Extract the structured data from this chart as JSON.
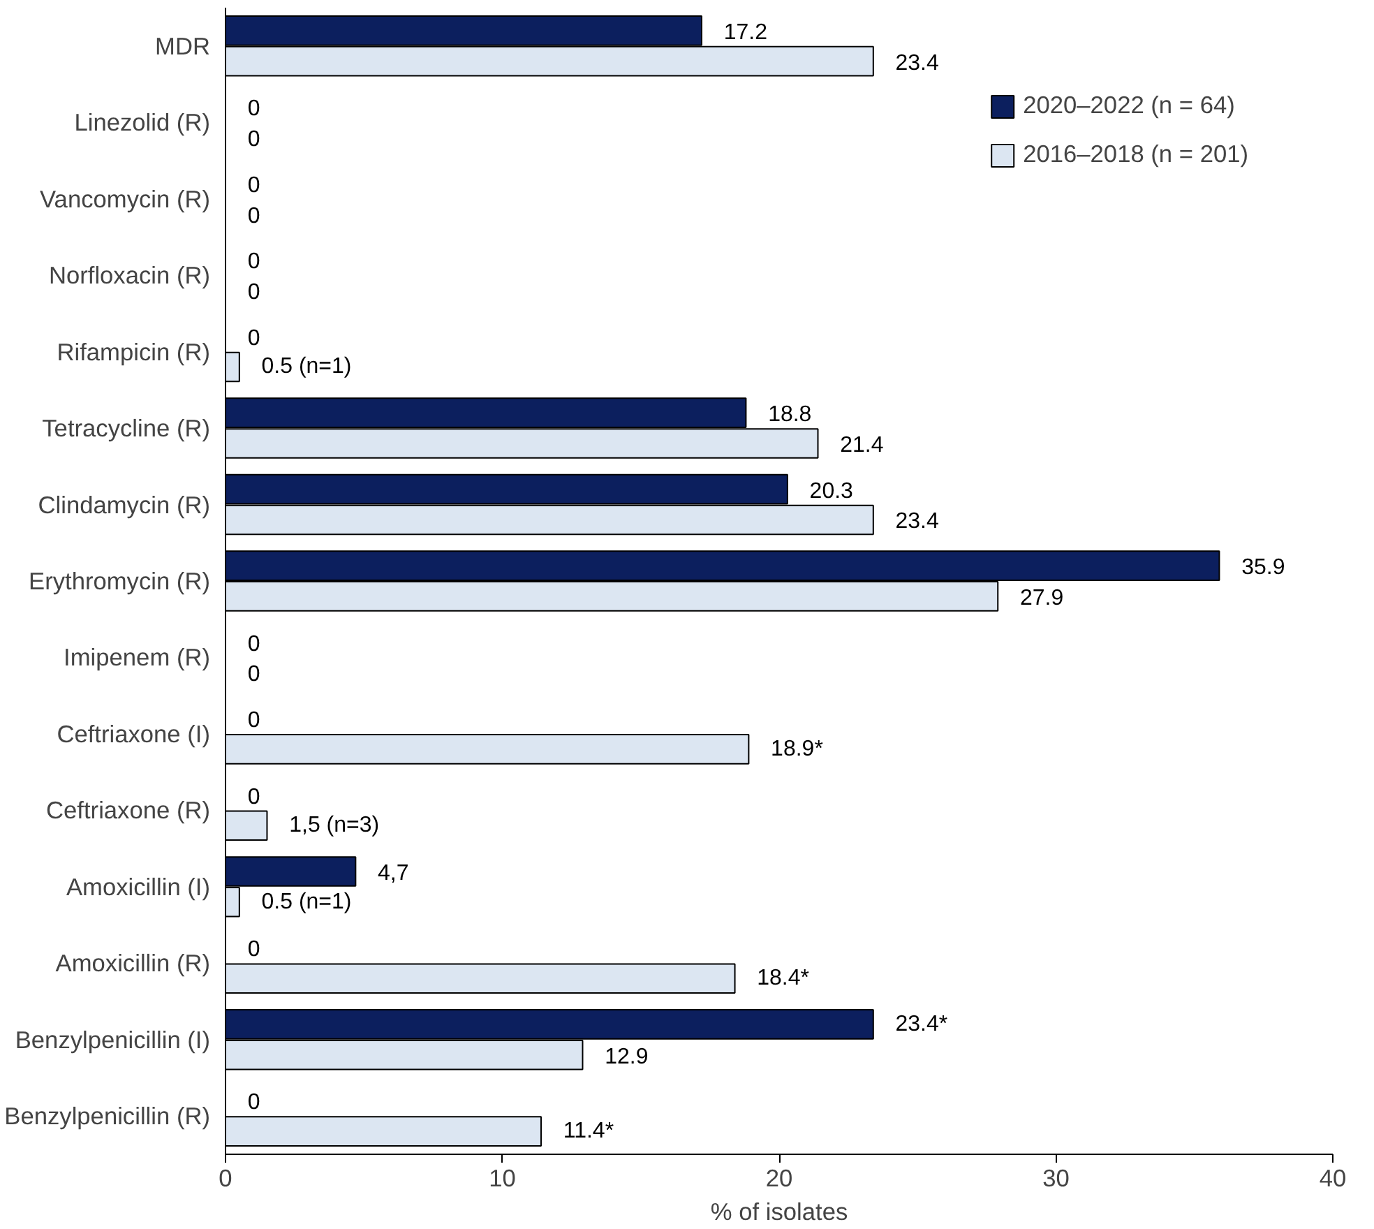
{
  "chart_data": {
    "type": "bar",
    "orientation": "horizontal",
    "xlabel": "% of isolates",
    "xlim": [
      0,
      40
    ],
    "xticks": [
      0,
      10,
      20,
      30,
      40
    ],
    "grid": false,
    "legend": "top right",
    "categories": [
      "MDR",
      "Linezolid (R)",
      "Vancomycin (R)",
      "Norfloxacin (R)",
      "Rifampicin (R)",
      "Tetracycline (R)",
      "Clindamycin (R)",
      "Erythromycin (R)",
      "Imipenem (R)",
      "Ceftriaxone (I)",
      "Ceftriaxone (R)",
      "Amoxicillin (I)",
      "Amoxicillin (R)",
      "Benzylpenicillin (I)",
      "Benzylpenicillin (R)"
    ],
    "series": [
      {
        "name": "2020–2022 (n = 64)",
        "color": "#0c1f5e",
        "values": [
          17.2,
          0,
          0,
          0,
          0,
          18.8,
          20.3,
          35.9,
          0,
          0,
          0,
          4.7,
          0,
          23.4,
          0
        ],
        "value_labels": [
          "17.2",
          "0",
          "0",
          "0",
          "0",
          "18.8",
          "20.3",
          "35.9",
          "0",
          "0",
          "0",
          "4,7",
          "0",
          "23.4*",
          "0"
        ]
      },
      {
        "name": "2016–2018 (n = 201)",
        "color": "#dce6f2",
        "values": [
          23.4,
          0,
          0,
          0,
          0.5,
          21.4,
          23.4,
          27.9,
          0,
          18.9,
          1.5,
          0.5,
          18.4,
          12.9,
          11.4
        ],
        "value_labels": [
          "23.4",
          "0",
          "0",
          "0",
          "0.5 (n=1)",
          "21.4",
          "23.4",
          "27.9",
          "0",
          "18.9*",
          "1,5 (n=3)",
          "0.5 (n=1)",
          "18.4*",
          "12.9",
          "11.4*"
        ]
      }
    ]
  }
}
